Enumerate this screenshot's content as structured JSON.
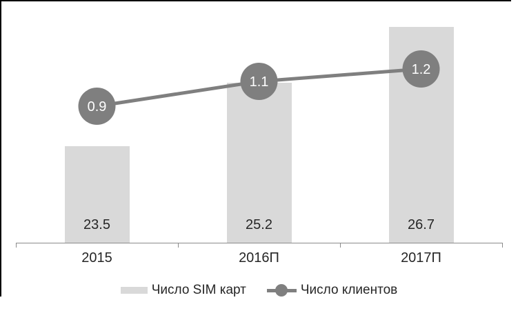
{
  "chart_data": {
    "type": "combo",
    "categories": [
      "2015",
      "2016П",
      "2017П"
    ],
    "series": [
      {
        "name": "Число SIM карт",
        "type": "bar",
        "values": [
          23.5,
          25.2,
          26.7
        ],
        "color": "#d9d9d9",
        "value_label_color": "#262626"
      },
      {
        "name": "Число клиентов",
        "type": "line",
        "values": [
          0.9,
          1.1,
          1.2
        ],
        "color": "#7f7f7f",
        "value_label_color": "#ffffff"
      }
    ],
    "title": "",
    "xlabel": "",
    "ylabel": "",
    "gridlines": false,
    "legend_position": "bottom",
    "value_labels_visible": true,
    "y_axis_visible": false
  },
  "colors": {
    "background": "#ffffff",
    "chart_border": "#000000",
    "axis_line": "#8a8a8a",
    "text": "#262626"
  }
}
